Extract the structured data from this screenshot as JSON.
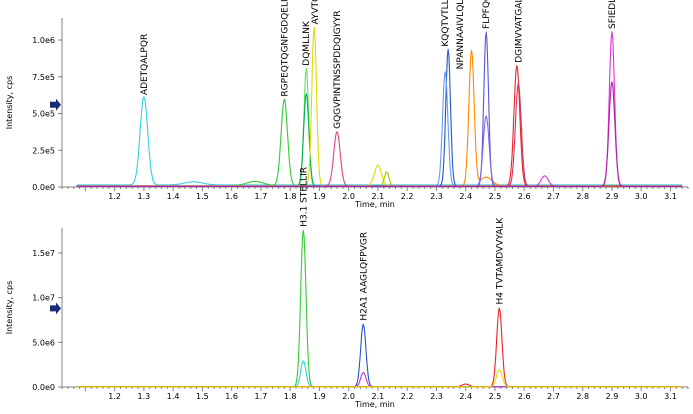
{
  "chart_data": [
    {
      "type": "line",
      "title": "",
      "xlabel": "Time, min",
      "ylabel": "Intensity, cps",
      "xlim": [
        1.02,
        3.16
      ],
      "ylim": [
        0,
        1150000
      ],
      "x_ticks": [
        1.2,
        1.3,
        1.4,
        1.5,
        1.6,
        1.7,
        1.8,
        1.9,
        2.0,
        2.1,
        2.2,
        2.3,
        2.4,
        2.5,
        2.6,
        2.7,
        2.8,
        2.9,
        3.0,
        3.1
      ],
      "x_tick_labels": [
        "1.2",
        "1.3",
        "1.4",
        "1.5",
        "1.6",
        "1.7",
        "1.8",
        "1.9",
        "2.0",
        "2.1",
        "2.2",
        "2.3",
        "2.4",
        "2.5",
        "2.6",
        "2.7",
        "2.8",
        "2.9",
        "3.0",
        "3.1"
      ],
      "y_ticks": [
        0,
        250000,
        500000,
        750000,
        1000000
      ],
      "y_tick_labels": [
        "0.0e0",
        "2.5e5",
        "5.0e5",
        "7.5e5",
        "1.0e6"
      ],
      "y_marker_value": 560000,
      "series": [
        {
          "color": "#33d0e0",
          "peaks": [
            {
              "x": 1.3,
              "y": 600000,
              "w": 0.013
            },
            {
              "x": 1.47,
              "y": 22000,
              "w": 0.03
            }
          ],
          "baseline": 14000
        },
        {
          "color": "#33cc33",
          "peaks": [
            {
              "x": 1.78,
              "y": 590000,
              "w": 0.011
            },
            {
              "x": 1.68,
              "y": 30000,
              "w": 0.03
            }
          ],
          "baseline": 8000
        },
        {
          "color": "#66e066",
          "peaks": [
            {
              "x": 1.855,
              "y": 800000,
              "w": 0.008
            }
          ],
          "baseline": 6000
        },
        {
          "color": "#00b050",
          "peaks": [
            {
              "x": 1.855,
              "y": 630000,
              "w": 0.009
            }
          ],
          "baseline": 5000
        },
        {
          "color": "#dddd00",
          "peaks": [
            {
              "x": 1.882,
              "y": 1080000,
              "w": 0.008
            },
            {
              "x": 2.1,
              "y": 140000,
              "w": 0.012
            }
          ],
          "baseline": 8000
        },
        {
          "color": "#99cc00",
          "peaks": [
            {
              "x": 2.13,
              "y": 100000,
              "w": 0.008
            }
          ],
          "baseline": 3000
        },
        {
          "color": "#e0408a",
          "peaks": [
            {
              "x": 1.96,
              "y": 370000,
              "w": 0.011
            }
          ],
          "baseline": 6000
        },
        {
          "color": "#2255cc",
          "peaks": [
            {
              "x": 2.34,
              "y": 930000,
              "w": 0.008
            }
          ],
          "baseline": 6000
        },
        {
          "color": "#6699ee",
          "peaks": [
            {
              "x": 2.33,
              "y": 780000,
              "w": 0.009
            }
          ],
          "baseline": 4000
        },
        {
          "color": "#ff8800",
          "peaks": [
            {
              "x": 2.42,
              "y": 920000,
              "w": 0.009
            },
            {
              "x": 2.47,
              "y": 60000,
              "w": 0.02
            }
          ],
          "baseline": 7000
        },
        {
          "color": "#5555dd",
          "peaks": [
            {
              "x": 2.47,
              "y": 1050000,
              "w": 0.008
            }
          ],
          "baseline": 5000
        },
        {
          "color": "#8866ee",
          "peaks": [
            {
              "x": 2.47,
              "y": 480000,
              "w": 0.01
            }
          ],
          "baseline": 3000
        },
        {
          "color": "#ee2222",
          "peaks": [
            {
              "x": 2.575,
              "y": 820000,
              "w": 0.01
            }
          ],
          "baseline": 6000
        },
        {
          "color": "#cc3366",
          "peaks": [
            {
              "x": 2.58,
              "y": 700000,
              "w": 0.01
            }
          ],
          "baseline": 4000
        },
        {
          "color": "#dd33dd",
          "peaks": [
            {
              "x": 2.9,
              "y": 1050000,
              "w": 0.009
            },
            {
              "x": 2.67,
              "y": 70000,
              "w": 0.012
            }
          ],
          "baseline": 6000
        },
        {
          "color": "#aa22aa",
          "peaks": [
            {
              "x": 2.9,
              "y": 710000,
              "w": 0.01
            }
          ],
          "baseline": 5000
        }
      ],
      "annotations": [
        {
          "text": "ADETQALPQR",
          "x": 1.3,
          "y": 605000
        },
        {
          "text": "RGPEQTQGNFGDQELIR",
          "x": 1.78,
          "y": 595000
        },
        {
          "text": "DQMLLNK",
          "x": 1.855,
          "y": 805000
        },
        {
          "text": "AYVTQAFGR",
          "x": 1.885,
          "y": 1085000
        },
        {
          "text": "GQGVPINTNSSPDDQIGYYR",
          "x": 1.96,
          "y": 375000
        },
        {
          "text": "KQQTVTLLPAADLDDFSK",
          "x": 2.33,
          "y": 935000
        },
        {
          "text": "NPANNAAIVLQLPQGTTLPK",
          "x": 2.38,
          "y": 780000
        },
        {
          "text": "FLPFQQFGR",
          "x": 2.47,
          "y": 1055000
        },
        {
          "text": "DGIMVVATGALNTPK",
          "x": 2.58,
          "y": 825000
        },
        {
          "text": "SFIEDLLFNK",
          "x": 2.9,
          "y": 1055000
        }
      ]
    },
    {
      "type": "line",
      "title": "",
      "xlabel": "Time, min",
      "ylabel": "Intensity, cps",
      "xlim": [
        1.02,
        3.16
      ],
      "ylim": [
        0,
        17800000
      ],
      "x_ticks": [
        1.2,
        1.3,
        1.4,
        1.5,
        1.6,
        1.7,
        1.8,
        1.9,
        2.0,
        2.1,
        2.2,
        2.3,
        2.4,
        2.5,
        2.6,
        2.7,
        2.8,
        2.9,
        3.0,
        3.1
      ],
      "x_tick_labels": [
        "1.2",
        "1.3",
        "1.4",
        "1.5",
        "1.6",
        "1.7",
        "1.8",
        "1.9",
        "2.0",
        "2.1",
        "2.2",
        "2.3",
        "2.4",
        "2.5",
        "2.6",
        "2.7",
        "2.8",
        "2.9",
        "3.0",
        "3.1"
      ],
      "y_ticks": [
        0,
        5000000,
        10000000,
        15000000
      ],
      "y_tick_labels": [
        "0.0e0",
        "5.0e6",
        "1.0e7",
        "1.5e7"
      ],
      "y_marker_value": 8800000,
      "series": [
        {
          "color": "#33cc33",
          "peaks": [
            {
              "x": 1.845,
              "y": 17500000,
              "w": 0.009
            }
          ],
          "baseline": 30000
        },
        {
          "color": "#33d0e0",
          "peaks": [
            {
              "x": 1.845,
              "y": 2900000,
              "w": 0.009
            }
          ],
          "baseline": 20000
        },
        {
          "color": "#2255cc",
          "peaks": [
            {
              "x": 2.05,
              "y": 7000000,
              "w": 0.009
            }
          ],
          "baseline": 30000
        },
        {
          "color": "#cc33cc",
          "peaks": [
            {
              "x": 2.05,
              "y": 1600000,
              "w": 0.009
            }
          ],
          "baseline": 20000
        },
        {
          "color": "#ee2222",
          "peaks": [
            {
              "x": 2.515,
              "y": 8800000,
              "w": 0.009
            },
            {
              "x": 2.4,
              "y": 300000,
              "w": 0.012
            }
          ],
          "baseline": 30000
        },
        {
          "color": "#dddd00",
          "peaks": [
            {
              "x": 2.515,
              "y": 1900000,
              "w": 0.01
            }
          ],
          "baseline": 20000
        }
      ],
      "annotations": [
        {
          "text": "H3.1 STELLIR",
          "x": 1.845,
          "y": 17600000
        },
        {
          "text": "H2A1 AAGLQFPVGR",
          "x": 2.05,
          "y": 7100000
        },
        {
          "text": "H4 TVTAMDVVYALK",
          "x": 2.515,
          "y": 8900000
        }
      ]
    }
  ]
}
